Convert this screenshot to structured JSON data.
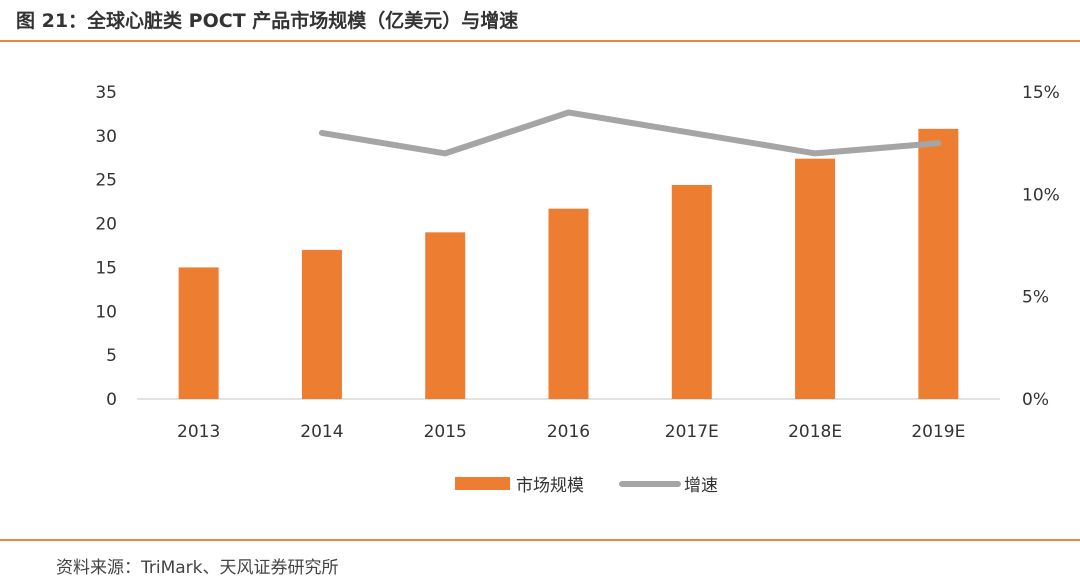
{
  "title": "图 21：全球心脏类 POCT 产品市场规模（亿美元）与增速",
  "source": "资料来源：TriMark、天风证券研究所",
  "colors": {
    "bar": "#ed7d31",
    "line": "#a5a5a5",
    "rule": "#e8883a"
  },
  "chart_data": {
    "type": "bar",
    "title": "全球心脏类 POCT 产品市场规模（亿美元）与增速",
    "categories": [
      "2013",
      "2014",
      "2015",
      "2016",
      "2017E",
      "2018E",
      "2019E"
    ],
    "series": [
      {
        "name": "市场规模",
        "type": "bar",
        "axis": "left",
        "values": [
          15.0,
          17.0,
          19.0,
          21.7,
          24.4,
          27.4,
          30.8
        ]
      },
      {
        "name": "增速",
        "type": "line",
        "axis": "right",
        "values": [
          null,
          13.0,
          12.0,
          14.0,
          13.0,
          12.0,
          12.5
        ]
      }
    ],
    "ylim": [
      0,
      35
    ],
    "yticks": [
      "0",
      "5",
      "10",
      "15",
      "20",
      "25",
      "30",
      "35"
    ],
    "y2lim": [
      0,
      15
    ],
    "y2ticks": [
      "0%",
      "5%",
      "10%",
      "15%"
    ],
    "grid": false,
    "legend_position": "bottom"
  }
}
